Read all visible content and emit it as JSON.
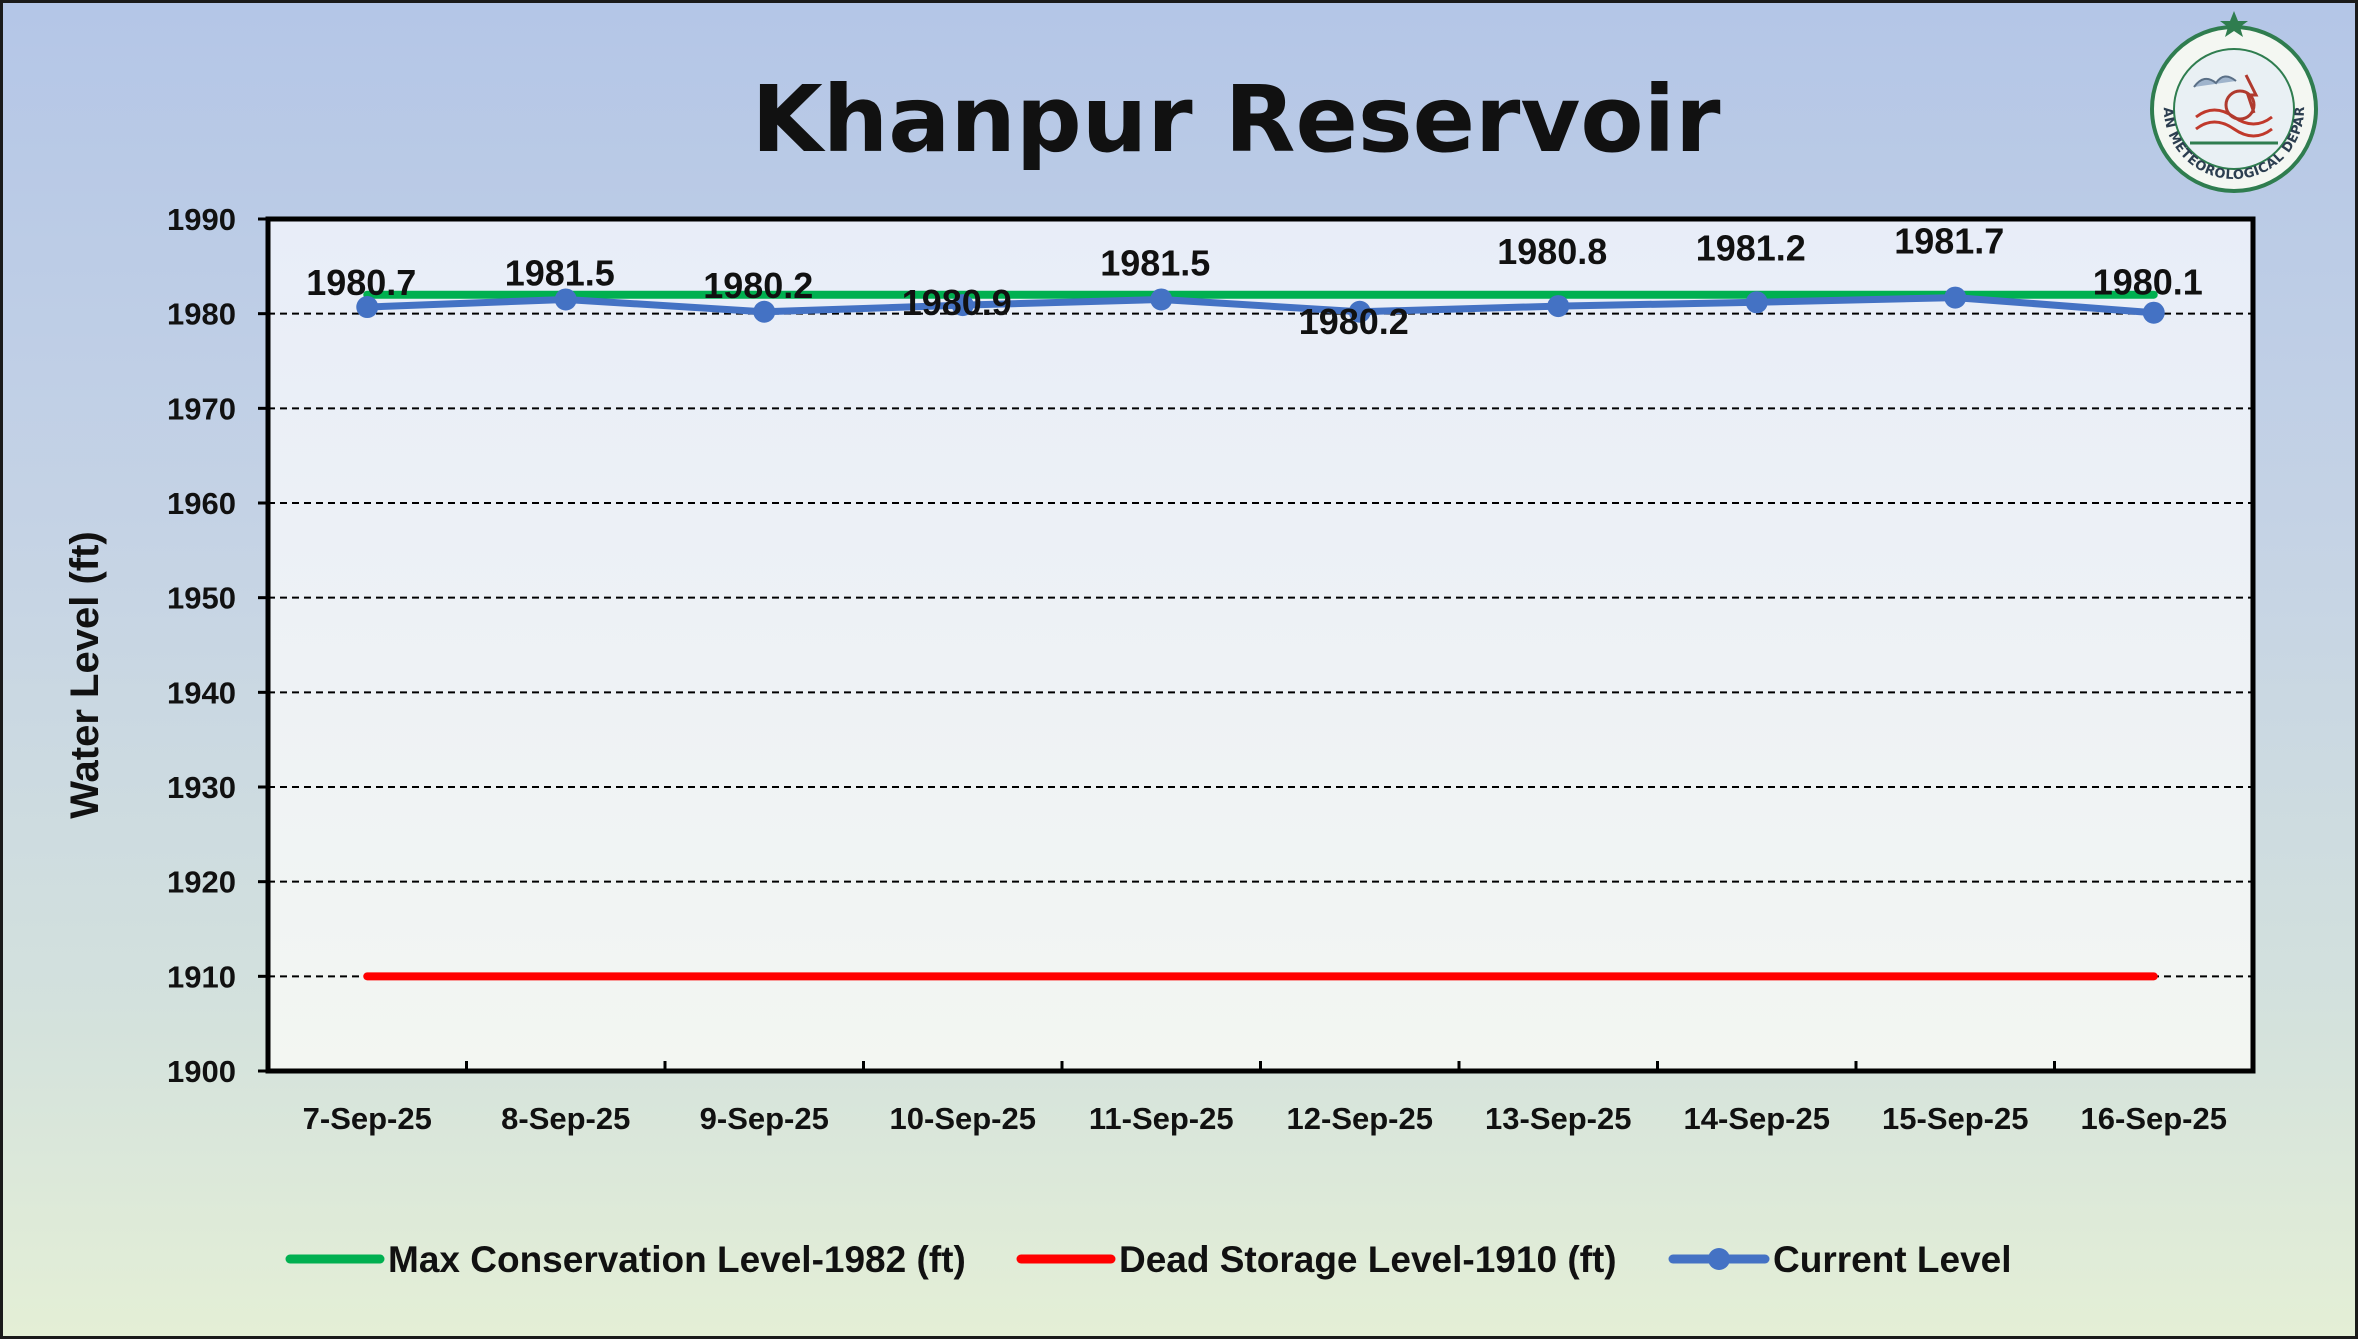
{
  "chart_data": {
    "type": "line",
    "title": "Khanpur Reservoir",
    "ylabel": "Water Level (ft)",
    "xlabel": "",
    "ylim": [
      1900,
      1990
    ],
    "yticks": [
      1900,
      1910,
      1920,
      1930,
      1940,
      1950,
      1960,
      1970,
      1980,
      1990
    ],
    "grid": "horizontal dashed",
    "legend_position": "bottom",
    "categories": [
      "7-Sep-25",
      "8-Sep-25",
      "9-Sep-25",
      "10-Sep-25",
      "11-Sep-25",
      "12-Sep-25",
      "13-Sep-25",
      "14-Sep-25",
      "15-Sep-25",
      "16-Sep-25"
    ],
    "series": [
      {
        "name": "Max Conservation Level-1982 (ft)",
        "color": "#00b050",
        "values": [
          1982,
          1982,
          1982,
          1982,
          1982,
          1982,
          1982,
          1982,
          1982,
          1982
        ],
        "markers": false,
        "data_labels": false
      },
      {
        "name": "Dead Storage Level-1910 (ft)",
        "color": "#ff0000",
        "values": [
          1910,
          1910,
          1910,
          1910,
          1910,
          1910,
          1910,
          1910,
          1910,
          1910
        ],
        "markers": false,
        "data_labels": false
      },
      {
        "name": "Current Level",
        "color": "#4472c4",
        "values": [
          1980.7,
          1981.5,
          1980.2,
          1980.9,
          1981.5,
          1980.2,
          1980.8,
          1981.2,
          1981.7,
          1980.1
        ],
        "markers": true,
        "data_labels": true,
        "labels": [
          "1980.7",
          "1981.5",
          "1980.2",
          "1980.9",
          "1981.5",
          "1980.2",
          "1980.8",
          "1981.2",
          "1981.7",
          "1980.1"
        ]
      }
    ]
  },
  "logo": {
    "name": "Pakistan Meteorological Department emblem",
    "text": "PAKISTAN METEOROLOGICAL DEPARTMENT"
  }
}
